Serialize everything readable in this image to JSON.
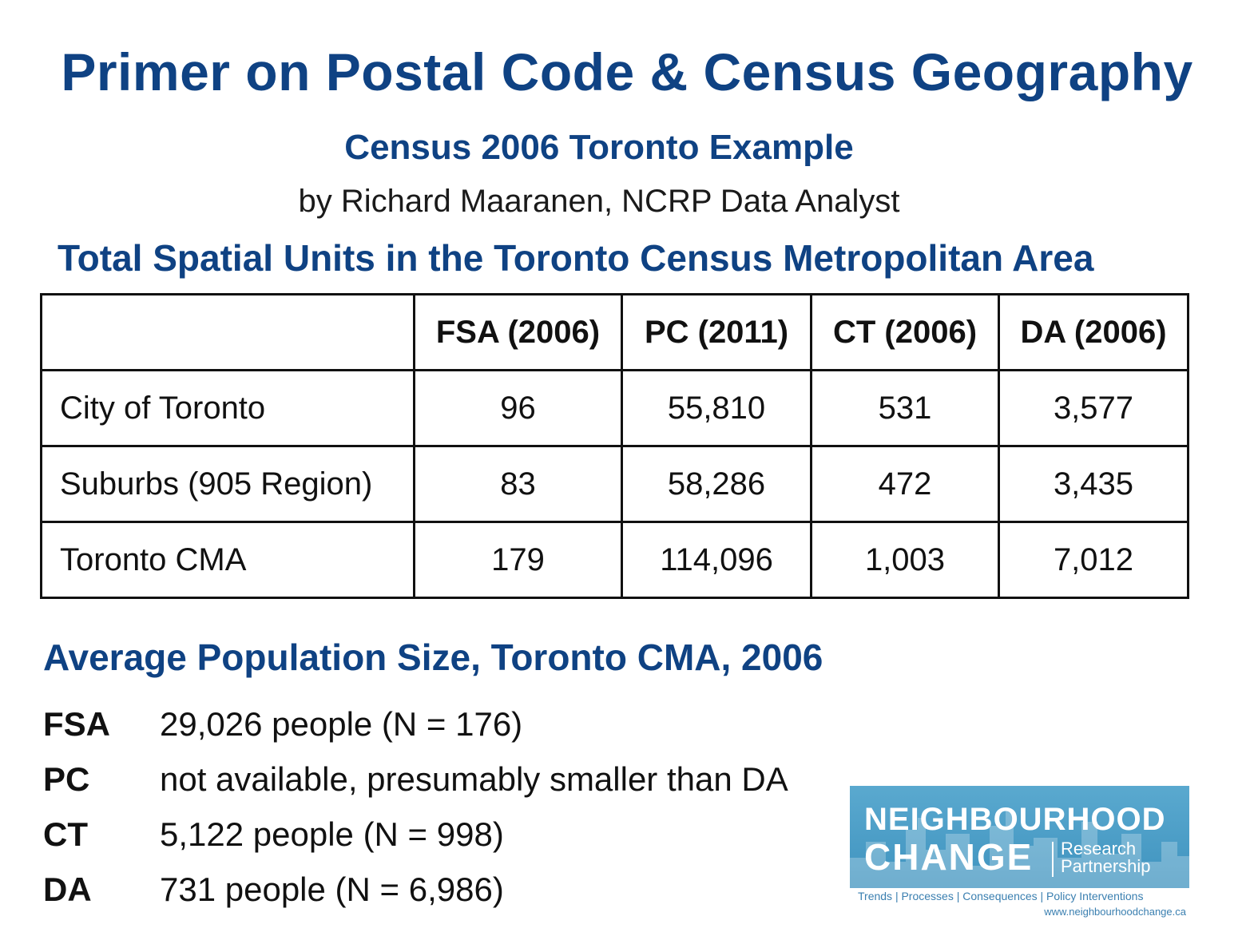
{
  "title": "Primer on Postal Code & Census Geography",
  "subtitle": "Census 2006 Toronto Example",
  "byline": "by Richard Maaranen, NCRP Data Analyst",
  "section1_title": "Total Spatial Units in the Toronto Census Metropolitan Area",
  "table": {
    "headers": [
      "",
      "FSA (2006)",
      "PC (2011)",
      "CT (2006)",
      "DA (2006)"
    ],
    "rows": [
      {
        "label": "City of Toronto",
        "values": [
          "96",
          "55,810",
          "531",
          "3,577"
        ]
      },
      {
        "label": "Suburbs (905 Region)",
        "values": [
          "83",
          "58,286",
          "472",
          "3,435"
        ]
      },
      {
        "label": "Toronto CMA",
        "values": [
          "179",
          "114,096",
          "1,003",
          "7,012"
        ]
      }
    ]
  },
  "section2_title": "Average Population Size, Toronto CMA, 2006",
  "averages": [
    {
      "key": "FSA",
      "value": "29,026 people (N = 176)"
    },
    {
      "key": "PC",
      "value": "not available, presumably smaller than DA"
    },
    {
      "key": "CT",
      "value": "5,122 people (N = 998)"
    },
    {
      "key": "DA",
      "value": "731 people (N = 6,986)"
    }
  ],
  "logo": {
    "line1": "NEIGHBOURHOOD",
    "line2": "CHANGE",
    "rp1": "Research",
    "rp2": "Partnership",
    "tagline": "Trends  |  Processes  |  Consequences  |  Policy Interventions",
    "url": "www.neighbourhoodchange.ca",
    "color": "#4a9cc8"
  },
  "colors": {
    "heading": "#0f4283"
  }
}
